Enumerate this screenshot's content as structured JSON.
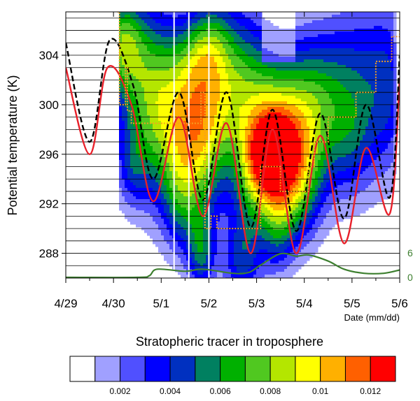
{
  "chart_data": {
    "type": "contour",
    "title": "Stratopheric tracer in troposphere",
    "xlabel": "Date (mm/dd)",
    "ylabel": "Potential temperature (K)",
    "xlim": [
      "4/29",
      "5/6"
    ],
    "ylim": [
      286,
      307.5
    ],
    "x_ticks": [
      "4/29",
      "4/30",
      "5/1",
      "5/2",
      "5/3",
      "5/4",
      "5/5",
      "5/6"
    ],
    "y_ticks": [
      288,
      292,
      296,
      300,
      304
    ],
    "right_axis_ticks": [
      "0",
      "6"
    ],
    "right_axis_color": "#3d7f2f",
    "colorbar": {
      "levels": [
        0.001,
        0.002,
        0.003,
        0.004,
        0.005,
        0.006,
        0.007,
        0.008,
        0.009,
        0.01,
        0.011,
        0.012
      ],
      "tick_labels": [
        "0.002",
        "0.004",
        "0.006",
        "0.008",
        "0.01",
        "0.012"
      ],
      "colors": [
        "#ffffff",
        "#a0a0ff",
        "#5050ff",
        "#0000ff",
        "#0030c0",
        "#008060",
        "#00b000",
        "#50c820",
        "#b4e600",
        "#ffff00",
        "#ffb000",
        "#ff6000",
        "#ff0000"
      ]
    },
    "series": [
      {
        "style": "solid",
        "color": "#e8202a",
        "x": [
          "4/29 00:00",
          "4/29 12:00",
          "4/29 21:00",
          "4/30 09:00",
          "4/30 20:00",
          "5/1 09:00",
          "5/1 21:00",
          "5/2 09:00",
          "5/2 21:00",
          "5/3 08:00",
          "5/3 20:00",
          "5/4 08:00",
          "5/4 20:00",
          "5/5 07:00",
          "5/5 19:00",
          "5/6 00:00"
        ],
        "y": [
          303.0,
          296.0,
          303.0,
          300.0,
          292.2,
          299.0,
          291.0,
          298.5,
          288.0,
          298.0,
          288.0,
          297.5,
          288.8,
          296.5,
          291.2,
          302.2
        ]
      },
      {
        "style": "dashed",
        "color": "#000000",
        "x": [
          "4/29 00:00",
          "4/29 12:00",
          "4/29 22:00",
          "4/30 10:00",
          "4/30 20:00",
          "5/1 09:00",
          "5/1 21:00",
          "5/2 09:00",
          "5/2 21:00",
          "5/3 08:00",
          "5/3 20:00",
          "5/4 08:00",
          "5/4 20:00",
          "5/5 07:00",
          "5/5 19:00",
          "5/6 00:00"
        ],
        "y": [
          305.0,
          297.0,
          305.2,
          301.5,
          294.0,
          301.0,
          292.3,
          301.0,
          290.1,
          299.6,
          289.8,
          299.3,
          290.8,
          300.0,
          292.5,
          304.0
        ]
      },
      {
        "style": "dotted",
        "color": "#f5a020",
        "x": [
          "4/30 02:00",
          "4/30 03:00",
          "4/30 06:00",
          "4/30 07:00",
          "4/30 09:00",
          "5/1 20:00",
          "5/1 22:00",
          "5/2 01:00",
          "5/2 04:00",
          "5/2 21:00",
          "5/3 02:00",
          "5/3 12:00",
          "5/3 20:00",
          "5/4 02:00",
          "5/4 05:00",
          "5/4 12:00",
          "5/5 02:00",
          "5/5 12:00",
          "5/5 20:00",
          "5/6 00:00"
        ],
        "y": [
          307.5,
          300.0,
          303.0,
          299.5,
          298.5,
          301.0,
          290.0,
          291.0,
          290.0,
          290.0,
          295.0,
          293.0,
          293.0,
          295.0,
          297.0,
          299.0,
          301.0,
          303.5,
          305.5,
          306.0
        ]
      },
      {
        "style": "solid",
        "color": "#3d7f2f",
        "axis": "right",
        "x": [
          "4/29 00:00",
          "4/30 12:00",
          "4/30 18:00",
          "4/30 22:00",
          "5/1 12:00",
          "5/1 21:00",
          "5/2 12:00",
          "5/2 20:00",
          "5/3 02:00",
          "5/3 12:00",
          "5/3 20:00",
          "5/4 02:00",
          "5/4 12:00",
          "5/4 20:00",
          "5/5 06:00",
          "5/5 16:00",
          "5/6 00:00"
        ],
        "y": [
          0,
          0,
          0.4,
          2.0,
          1.5,
          2.0,
          1.0,
          1.2,
          3.0,
          5.8,
          5.2,
          5.5,
          4.0,
          2.0,
          1.0,
          1.0,
          1.8
        ]
      }
    ]
  }
}
